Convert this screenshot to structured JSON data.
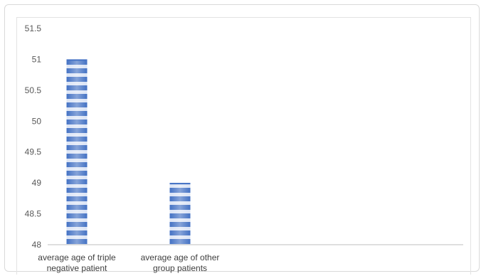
{
  "chart_data": {
    "type": "bar",
    "categories": [
      [
        "average age of triple",
        "negative patient"
      ],
      [
        "average age of other",
        "group patients"
      ]
    ],
    "values": [
      51,
      49
    ],
    "ylim": [
      48,
      51.5
    ],
    "yticks": [
      "48",
      "48.5",
      "49",
      "49.5",
      "50",
      "50.5",
      "51",
      "51.5"
    ],
    "grid": false,
    "legend": "none",
    "bar_color": "#4472c4",
    "bar_stripe_color": "#dbe4f5"
  }
}
